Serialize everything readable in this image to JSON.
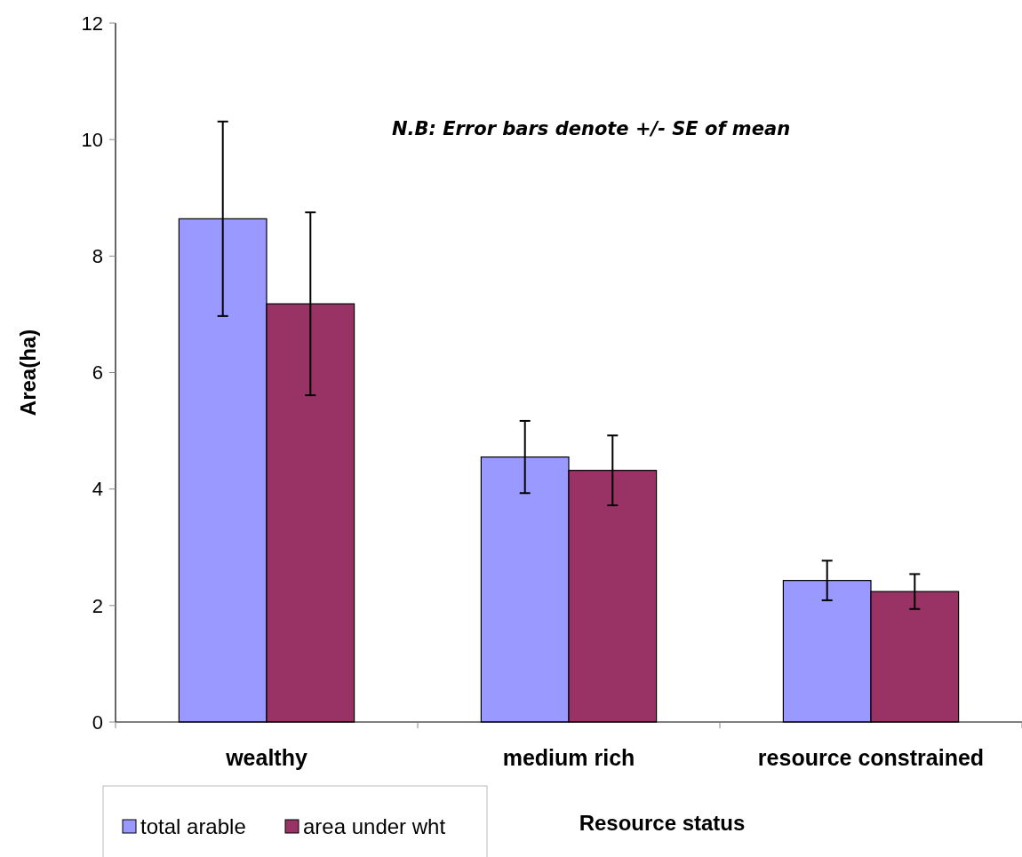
{
  "chart_data": {
    "type": "bar",
    "xlabel": "Resource status",
    "ylabel": "Area(ha)",
    "categories": [
      "wealthy",
      "medium rich",
      "resource constrained"
    ],
    "series": [
      {
        "name": "total arable",
        "color": "#9999ff",
        "values": [
          8.64,
          4.55,
          2.43
        ],
        "errors": [
          1.67,
          0.62,
          0.34
        ]
      },
      {
        "name": "area under wht",
        "color": "#993366",
        "values": [
          7.18,
          4.32,
          2.24
        ],
        "errors": [
          1.57,
          0.6,
          0.3
        ]
      }
    ],
    "ylim": [
      0,
      12
    ],
    "yticks": [
      0,
      2,
      4,
      6,
      8,
      10,
      12
    ],
    "grid": false,
    "legend": "bottom left",
    "annotations": [
      "N.B: Error bars denote +/- SE of mean"
    ]
  }
}
